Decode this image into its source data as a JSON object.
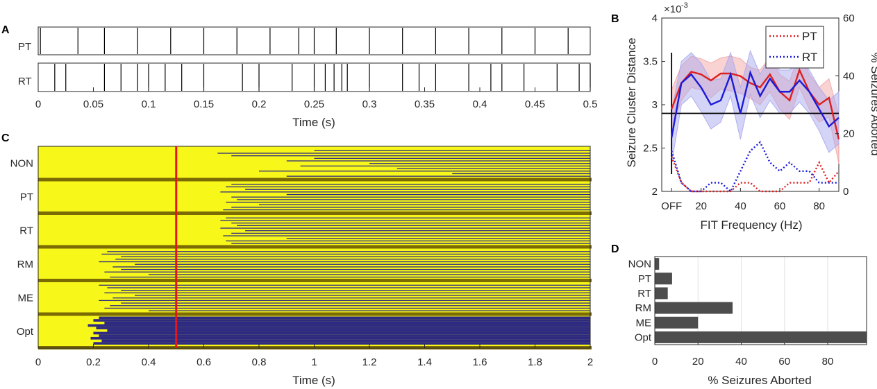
{
  "panels": {
    "a": "A",
    "b": "B",
    "c": "C",
    "d": "D"
  },
  "chart_data": [
    {
      "id": "A",
      "type": "raster",
      "rows": [
        "PT",
        "RT"
      ],
      "xlabel": "Time (s)",
      "xlim": [
        0,
        0.5
      ],
      "xticks": [
        "0",
        "0.05",
        "0.1",
        "0.15",
        "0.2",
        "0.25",
        "0.3",
        "0.35",
        "0.4",
        "0.45",
        "0.5"
      ],
      "series": [
        {
          "name": "PT",
          "times": [
            0.002,
            0.036,
            0.06,
            0.09,
            0.12,
            0.15,
            0.18,
            0.21,
            0.236,
            0.25,
            0.27,
            0.3,
            0.33,
            0.36,
            0.39,
            0.42,
            0.45,
            0.48
          ]
        },
        {
          "name": "RT",
          "times": [
            0.015,
            0.025,
            0.06,
            0.075,
            0.09,
            0.1,
            0.115,
            0.13,
            0.15,
            0.185,
            0.2,
            0.23,
            0.25,
            0.26,
            0.268,
            0.275,
            0.28,
            0.3,
            0.33,
            0.345,
            0.36,
            0.39,
            0.41,
            0.42,
            0.44,
            0.47,
            0.49,
            0.5
          ]
        }
      ]
    },
    {
      "id": "B",
      "type": "line",
      "xlabel": "FIT Frequency (Hz)",
      "ylabel": "Seizure Cluster Distance",
      "y2label": "% Seizures Aborted",
      "exponent_label": "×10",
      "exponent": "-3",
      "xlim": [
        0,
        90
      ],
      "xtick_labels": [
        "OFF",
        "20",
        "40",
        "60",
        "80"
      ],
      "xtick_values": [
        5,
        20,
        40,
        60,
        80
      ],
      "ylim": [
        2,
        4
      ],
      "yticks": [
        "2",
        "2.5",
        "3",
        "3.5",
        "4"
      ],
      "y2lim": [
        0,
        60
      ],
      "y2ticks": [
        "0",
        "20",
        "40",
        "60"
      ],
      "reference_y": 2.9,
      "legend": [
        "PT",
        "RT"
      ],
      "legend_position": "top-right",
      "colors": {
        "PT": "#dd1f1f",
        "RT": "#1a1ad8",
        "PT_band": "#f3a6a6",
        "RT_band": "#a9a9ee"
      },
      "x": [
        5,
        10,
        15,
        20,
        25,
        30,
        35,
        40,
        45,
        50,
        55,
        60,
        65,
        70,
        75,
        80,
        85,
        90
      ],
      "series": [
        {
          "name": "PT",
          "distance": [
            2.95,
            3.25,
            3.38,
            3.35,
            3.28,
            3.36,
            3.36,
            3.33,
            3.25,
            3.2,
            3.35,
            3.15,
            3.05,
            3.4,
            3.15,
            3.0,
            3.08,
            2.6
          ],
          "band": [
            0.22,
            0.2,
            0.18,
            0.18,
            0.2,
            0.18,
            0.2,
            0.2,
            0.18,
            0.2,
            0.2,
            0.2,
            0.22,
            0.2,
            0.2,
            0.2,
            0.22,
            0.28
          ],
          "aborted": [
            12,
            3,
            0,
            0,
            0,
            0,
            0,
            3,
            3,
            0,
            0,
            0,
            3,
            3,
            3,
            10,
            3,
            7
          ]
        },
        {
          "name": "RT",
          "distance": [
            2.62,
            3.25,
            3.35,
            3.2,
            3.0,
            3.05,
            3.35,
            2.9,
            3.37,
            3.1,
            3.3,
            3.15,
            3.15,
            3.28,
            3.15,
            2.95,
            2.75,
            2.85
          ],
          "band": [
            0.3,
            0.25,
            0.25,
            0.28,
            0.28,
            0.25,
            0.25,
            0.3,
            0.25,
            0.25,
            0.25,
            0.25,
            0.25,
            0.25,
            0.25,
            0.25,
            0.3,
            0.3
          ],
          "aborted": [
            14,
            3,
            0,
            0,
            3,
            3,
            0,
            7,
            14,
            17,
            10,
            7,
            10,
            7,
            7,
            3,
            3,
            3
          ]
        }
      ]
    },
    {
      "id": "C",
      "type": "heatmap",
      "rows": [
        "NON",
        "PT",
        "RT",
        "RM",
        "ME",
        "Opt"
      ],
      "xlabel": "Time (s)",
      "xlim": [
        0,
        2
      ],
      "xticks": [
        "0",
        "0.2",
        "0.4",
        "0.6",
        "0.8",
        "1",
        "1.2",
        "1.4",
        "1.6",
        "1.8",
        "2"
      ],
      "marker_time": 0.5,
      "colors": {
        "seizure": "#f7f719",
        "aborted": "#2e2a82",
        "divider": "#7b6b05",
        "marker": "#e8141c"
      },
      "aborted_onsets": [
        [
          1.0,
          0.65,
          0.7,
          1.0,
          0.9,
          1.2,
          0.95,
          1.3,
          0.8,
          1.5,
          0.9
        ],
        [
          0.7,
          0.68,
          0.75,
          0.66,
          0.9,
          0.7,
          0.72,
          0.68,
          0.8,
          0.7,
          0.67
        ],
        [
          0.68,
          0.66,
          0.7,
          0.72,
          0.66,
          0.75,
          0.7,
          0.67,
          0.9,
          0.68,
          0.7
        ],
        [
          0.25,
          0.23,
          0.3,
          0.28,
          0.22,
          0.35,
          0.27,
          0.3,
          0.24,
          0.4,
          0.26
        ],
        [
          0.22,
          0.25,
          0.3,
          0.24,
          0.35,
          0.27,
          0.22,
          0.3,
          0.26,
          0.24,
          0.4
        ],
        [
          0.22,
          0.2,
          0.24,
          0.18,
          0.21,
          0.25,
          0.2,
          0.22,
          0.19,
          0.23,
          0.2
        ]
      ]
    },
    {
      "id": "D",
      "type": "bar",
      "orientation": "horizontal",
      "categories": [
        "NON",
        "PT",
        "RT",
        "RM",
        "ME",
        "Opt"
      ],
      "values": [
        2,
        8,
        6,
        36,
        20,
        100
      ],
      "xlabel": "% Seizures Aborted",
      "xlim": [
        0,
        98
      ],
      "xticks": [
        "0",
        "20",
        "40",
        "60",
        "80"
      ],
      "bar_color": "#4d4d4d",
      "grid": true
    }
  ]
}
